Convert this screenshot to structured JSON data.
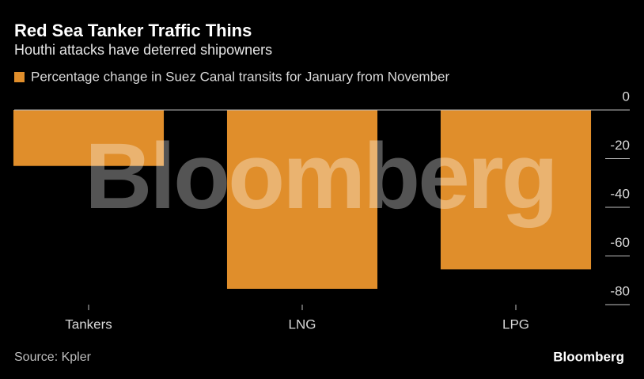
{
  "chart_data": {
    "type": "bar",
    "title": "Red Sea Tanker Traffic Thins",
    "subtitle": "Houthi attacks have deterred shipowners",
    "categories": [
      "Tankers",
      "LNG",
      "LPG"
    ],
    "series": [
      {
        "name": "Percentage change in Suez Canal transits for January from November",
        "color": "#e08e2b",
        "values": [
          -23,
          -73.5,
          -65.5
        ]
      }
    ],
    "ylim": [
      -80,
      0
    ],
    "yticks": [
      0,
      -20,
      -40,
      -60,
      -80
    ],
    "source": "Source: Kpler",
    "watermark": "Bloomberg",
    "logo": "Bloomberg"
  }
}
